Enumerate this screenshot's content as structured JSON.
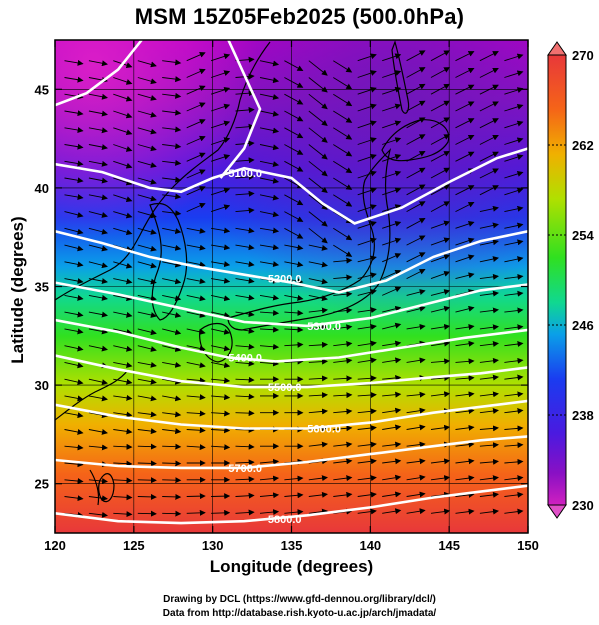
{
  "title": "MSM 15Z05Feb2025 (500.0hPa)",
  "x_axis": {
    "label": "Longitude (degrees)",
    "ticks": [
      "120",
      "125",
      "130",
      "135",
      "140",
      "145",
      "150"
    ]
  },
  "y_axis": {
    "label": "Latitude  (degrees)",
    "ticks": [
      "25",
      "30",
      "35",
      "40",
      "45"
    ]
  },
  "colorbar": {
    "ticks": [
      "270",
      "262",
      "254",
      "246",
      "238",
      "230"
    ],
    "min": 230,
    "max": 270
  },
  "contour_labels": [
    "5100.0",
    "5200.0",
    "5300.0",
    "5400.0",
    "5500.0",
    "5600.0",
    "5700.0",
    "5800.0"
  ],
  "credits": [
    "Drawing by DCL (https://www.gfd-dennou.org/library/dcl/)",
    "Data from http://database.rish.kyoto-u.ac.jp/arch/jmadata/"
  ],
  "chart_data": {
    "type": "heatmap",
    "title": "MSM 15Z05Feb2025 (500.0hPa)",
    "xlabel": "Longitude (degrees)",
    "ylabel": "Latitude  (degrees)",
    "xlim": [
      120,
      150
    ],
    "ylim": [
      22.5,
      47.5
    ],
    "color_range": [
      230,
      270
    ],
    "color_scale": "purple-blue-cyan-green-yellow-orange-red",
    "contour_interval": 100,
    "contours": [
      {
        "label": "5100.0",
        "points": [
          [
            120,
            41.2
          ],
          [
            123,
            40.8
          ],
          [
            126,
            40.0
          ],
          [
            128,
            39.8
          ],
          [
            130,
            40.5
          ],
          [
            132,
            41.0
          ],
          [
            135,
            40.5
          ],
          [
            137,
            39.2
          ],
          [
            139,
            38.2
          ],
          [
            142,
            39.0
          ],
          [
            145,
            40.3
          ],
          [
            148,
            41.5
          ],
          [
            150,
            42.0
          ]
        ]
      },
      {
        "label": "5200.0",
        "points": [
          [
            120,
            37.8
          ],
          [
            123,
            37.2
          ],
          [
            126,
            36.5
          ],
          [
            129,
            36.0
          ],
          [
            132,
            35.6
          ],
          [
            135,
            35.2
          ],
          [
            138,
            34.7
          ],
          [
            141,
            35.3
          ],
          [
            144,
            36.5
          ],
          [
            147,
            37.3
          ],
          [
            150,
            37.8
          ]
        ]
      },
      {
        "label": "5300.0",
        "points": [
          [
            120,
            35.2
          ],
          [
            124,
            34.6
          ],
          [
            128,
            33.9
          ],
          [
            132,
            33.2
          ],
          [
            136,
            33.0
          ],
          [
            140,
            33.4
          ],
          [
            144,
            34.2
          ],
          [
            147,
            34.8
          ],
          [
            150,
            35.1
          ]
        ]
      },
      {
        "label": "5400.0",
        "points": [
          [
            120,
            33.3
          ],
          [
            124,
            32.7
          ],
          [
            128,
            31.9
          ],
          [
            131,
            31.4
          ],
          [
            134,
            31.2
          ],
          [
            138,
            31.4
          ],
          [
            142,
            31.9
          ],
          [
            146,
            32.4
          ],
          [
            150,
            32.8
          ]
        ]
      },
      {
        "label": "5500.0",
        "points": [
          [
            120,
            31.5
          ],
          [
            124,
            30.8
          ],
          [
            128,
            30.2
          ],
          [
            132,
            29.9
          ],
          [
            136,
            29.9
          ],
          [
            140,
            30.1
          ],
          [
            144,
            30.4
          ],
          [
            147,
            30.6
          ],
          [
            150,
            30.9
          ]
        ]
      },
      {
        "label": "5600.0",
        "points": [
          [
            120,
            29.0
          ],
          [
            124,
            28.4
          ],
          [
            128,
            28.0
          ],
          [
            132,
            27.8
          ],
          [
            136,
            27.8
          ],
          [
            140,
            28.1
          ],
          [
            144,
            28.6
          ],
          [
            147,
            28.9
          ],
          [
            150,
            29.2
          ]
        ]
      },
      {
        "label": "5700.0",
        "points": [
          [
            120,
            26.2
          ],
          [
            124,
            25.9
          ],
          [
            128,
            25.8
          ],
          [
            132,
            25.8
          ],
          [
            136,
            26.1
          ],
          [
            140,
            26.5
          ],
          [
            144,
            26.9
          ],
          [
            147,
            27.2
          ],
          [
            150,
            27.4
          ]
        ]
      },
      {
        "label": "5800.0",
        "points": [
          [
            120,
            23.5
          ],
          [
            124,
            23.1
          ],
          [
            128,
            23.0
          ],
          [
            132,
            23.1
          ],
          [
            136,
            23.4
          ],
          [
            140,
            23.8
          ],
          [
            144,
            24.3
          ],
          [
            147,
            24.6
          ],
          [
            150,
            24.9
          ]
        ]
      }
    ],
    "ridge_contour": {
      "points": [
        [
          120,
          44.2
        ],
        [
          122,
          44.8
        ],
        [
          124,
          46.0
        ],
        [
          125.5,
          47.5
        ]
      ]
    },
    "trough_contour": {
      "points": [
        [
          131,
          47.5
        ],
        [
          133,
          44.0
        ],
        [
          132,
          42.0
        ],
        [
          130.5,
          40.5
        ]
      ]
    },
    "grid": true
  }
}
